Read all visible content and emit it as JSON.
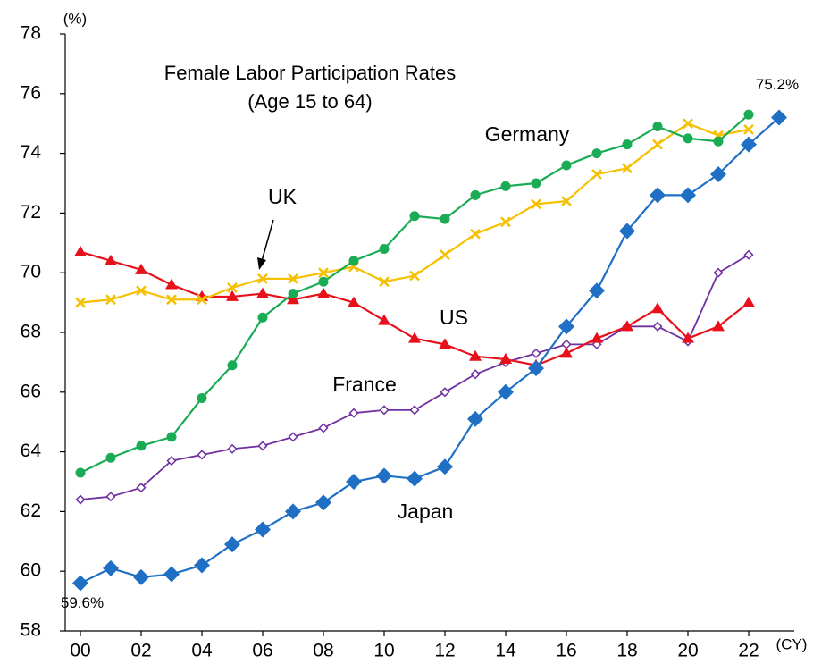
{
  "chart_data": {
    "type": "line",
    "title": "Female Labor Participation Rates",
    "subtitle": "(Age 15 to 64)",
    "y_unit": "(%)",
    "x_unit": "(CY)",
    "x": [
      2000,
      2001,
      2002,
      2003,
      2004,
      2005,
      2006,
      2007,
      2008,
      2009,
      2010,
      2011,
      2012,
      2013,
      2014,
      2015,
      2016,
      2017,
      2018,
      2019,
      2020,
      2021,
      2022,
      2023
    ],
    "xlim": [
      1999.5,
      2023.5
    ],
    "xticks": [
      {
        "value": 2000,
        "label": "00"
      },
      {
        "value": 2002,
        "label": "02"
      },
      {
        "value": 2004,
        "label": "04"
      },
      {
        "value": 2006,
        "label": "06"
      },
      {
        "value": 2008,
        "label": "08"
      },
      {
        "value": 2010,
        "label": "10"
      },
      {
        "value": 2012,
        "label": "12"
      },
      {
        "value": 2014,
        "label": "14"
      },
      {
        "value": 2016,
        "label": "16"
      },
      {
        "value": 2018,
        "label": "18"
      },
      {
        "value": 2020,
        "label": "20"
      },
      {
        "value": 2022,
        "label": "22"
      }
    ],
    "ylim": [
      58,
      78
    ],
    "yticks": [
      58,
      60,
      62,
      64,
      66,
      68,
      70,
      72,
      74,
      76,
      78
    ],
    "series": [
      {
        "name": "Japan",
        "color": "#1f6fc5",
        "marker": "diamond",
        "values": [
          59.6,
          60.1,
          59.8,
          59.9,
          60.2,
          60.9,
          61.4,
          62.0,
          62.3,
          63.0,
          63.2,
          63.1,
          63.5,
          65.1,
          66.0,
          66.8,
          68.2,
          69.4,
          71.4,
          72.6,
          72.6,
          73.3,
          74.3,
          75.2
        ],
        "value_labels": [
          "59.6%",
          null,
          null,
          null,
          null,
          null,
          null,
          null,
          null,
          null,
          null,
          null,
          null,
          null,
          null,
          null,
          null,
          null,
          null,
          null,
          null,
          null,
          null,
          "75.2%"
        ]
      },
      {
        "name": "Germany",
        "color": "#1aab55",
        "marker": "circle",
        "values": [
          63.3,
          63.8,
          64.2,
          64.5,
          65.8,
          66.9,
          68.5,
          69.3,
          69.7,
          70.4,
          70.8,
          71.9,
          71.8,
          72.6,
          72.9,
          73.0,
          73.6,
          74.0,
          74.3,
          74.9,
          74.5,
          74.4,
          75.3,
          null
        ]
      },
      {
        "name": "UK",
        "color": "#f5c000",
        "marker": "x",
        "values": [
          69.0,
          69.1,
          69.4,
          69.1,
          69.1,
          69.5,
          69.8,
          69.8,
          70.0,
          70.2,
          69.7,
          69.9,
          70.6,
          71.3,
          71.7,
          72.3,
          72.4,
          73.3,
          73.5,
          74.3,
          75.0,
          74.6,
          74.8,
          null
        ]
      },
      {
        "name": "US",
        "color": "#e8101a",
        "marker": "triangle",
        "values": [
          70.7,
          70.4,
          70.1,
          69.6,
          69.2,
          69.2,
          69.3,
          69.1,
          69.3,
          69.0,
          68.4,
          67.8,
          67.6,
          67.2,
          67.1,
          66.9,
          67.3,
          67.8,
          68.2,
          68.8,
          67.8,
          68.2,
          69.0,
          null
        ]
      },
      {
        "name": "France",
        "color": "#7030a0",
        "marker": "open-diamond",
        "values": [
          62.4,
          62.5,
          62.8,
          63.7,
          63.9,
          64.1,
          64.2,
          64.5,
          64.8,
          65.3,
          65.4,
          65.4,
          66.0,
          66.6,
          67.0,
          67.3,
          67.6,
          67.6,
          68.2,
          68.2,
          67.7,
          70.0,
          70.6,
          null
        ]
      }
    ]
  }
}
